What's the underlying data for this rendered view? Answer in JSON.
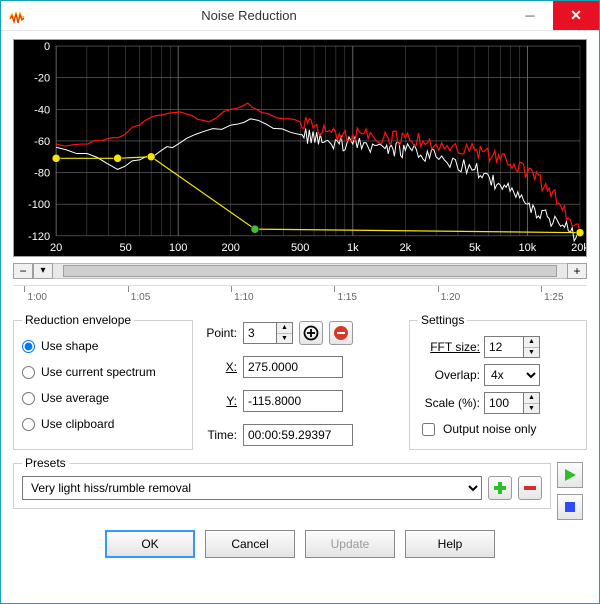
{
  "window": {
    "title": "Noise Reduction",
    "icon_colors": {
      "top": "#f7b500",
      "bottom": "#e03e00"
    }
  },
  "graph": {
    "bg": "#000000",
    "grid_color": "#6e6e6e",
    "y_labels": [
      "0",
      "-20",
      "-40",
      "-60",
      "-80",
      "-100",
      "-120"
    ],
    "y_values": [
      0,
      -20,
      -40,
      -60,
      -80,
      -100,
      -120
    ],
    "ylim": [
      -120,
      0
    ],
    "x_labels": [
      "20",
      "50",
      "100",
      "200",
      "500",
      "1k",
      "2k",
      "5k",
      "10k",
      "20k"
    ],
    "x_log_vals": [
      20,
      50,
      100,
      200,
      500,
      1000,
      2000,
      5000,
      10000,
      20000
    ],
    "xlim": [
      20,
      20000
    ],
    "axis_label_color": "#ffffff",
    "axis_label_fontsize": 11,
    "series": {
      "red": {
        "color": "#ff1010",
        "width": 1.2,
        "points": [
          [
            20,
            -62
          ],
          [
            28,
            -62
          ],
          [
            36,
            -60
          ],
          [
            45,
            -58
          ],
          [
            60,
            -50
          ],
          [
            75,
            -44
          ],
          [
            95,
            -42
          ],
          [
            120,
            -44
          ],
          [
            150,
            -48
          ],
          [
            200,
            -40
          ],
          [
            250,
            -36
          ],
          [
            300,
            -42
          ],
          [
            400,
            -46
          ],
          [
            500,
            -48
          ],
          [
            700,
            -54
          ],
          [
            1000,
            -56
          ],
          [
            1500,
            -58
          ],
          [
            2000,
            -58
          ],
          [
            3000,
            -62
          ],
          [
            5000,
            -66
          ],
          [
            7000,
            -72
          ],
          [
            10000,
            -80
          ],
          [
            14000,
            -92
          ],
          [
            20000,
            -118
          ]
        ]
      },
      "white": {
        "color": "#ffffff",
        "width": 1.0,
        "points": [
          [
            20,
            -64
          ],
          [
            30,
            -68
          ],
          [
            45,
            -78
          ],
          [
            60,
            -72
          ],
          [
            80,
            -66
          ],
          [
            100,
            -62
          ],
          [
            140,
            -54
          ],
          [
            200,
            -50
          ],
          [
            260,
            -46
          ],
          [
            350,
            -52
          ],
          [
            500,
            -56
          ],
          [
            700,
            -60
          ],
          [
            1000,
            -62
          ],
          [
            1500,
            -64
          ],
          [
            2000,
            -66
          ],
          [
            3000,
            -70
          ],
          [
            5000,
            -78
          ],
          [
            7000,
            -88
          ],
          [
            10000,
            -100
          ],
          [
            14000,
            -112
          ],
          [
            20000,
            -120
          ]
        ]
      },
      "yellow_env": {
        "color": "#f5e600",
        "width": 1.2,
        "node_fill": "#3fbf3f",
        "points": [
          [
            20,
            -71
          ],
          [
            45,
            -71
          ],
          [
            70,
            -70
          ],
          [
            275,
            -115.8
          ],
          [
            20000,
            -118
          ]
        ]
      }
    }
  },
  "zoom": {
    "minus": "−",
    "plus": "+",
    "marker": "▾"
  },
  "ruler": {
    "labels": [
      "1:00",
      "1:05",
      "1:10",
      "1:15",
      "1:20",
      "1:25"
    ],
    "positions_pct": [
      2,
      20,
      38,
      56,
      74,
      92
    ]
  },
  "envelope": {
    "legend": "Reduction envelope",
    "options": [
      {
        "key": "shape",
        "label": "Use shape",
        "checked": true
      },
      {
        "key": "spectrum",
        "label": "Use current spectrum",
        "checked": false
      },
      {
        "key": "average",
        "label": "Use average",
        "checked": false
      },
      {
        "key": "clipboard",
        "label": "Use clipboard",
        "checked": false
      }
    ]
  },
  "point": {
    "point_label": "Point:",
    "point_value": "3",
    "x_label": "X:",
    "x_value": "275.0000",
    "y_label": "Y:",
    "y_value": "-115.8000",
    "time_label": "Time:",
    "time_value": "00:00:59.29397",
    "add_icon": "⊕",
    "remove_icon": "⊖"
  },
  "settings": {
    "legend": "Settings",
    "fft_label": "FFT size:",
    "fft_value": "12",
    "overlap_label": "Overlap:",
    "overlap_value": "4x",
    "scale_label": "Scale (%):",
    "scale_value": "100",
    "output_noise_label": "Output noise only",
    "output_noise_checked": false
  },
  "presets": {
    "legend": "Presets",
    "selected": "Very light hiss/rumble removal",
    "add_color": "#2bbf2b",
    "remove_color": "#d12f2f"
  },
  "play_color": "#2bbf2b",
  "stop_color": "#2b4bff",
  "buttons": {
    "ok": "OK",
    "cancel": "Cancel",
    "update": "Update",
    "help": "Help"
  }
}
